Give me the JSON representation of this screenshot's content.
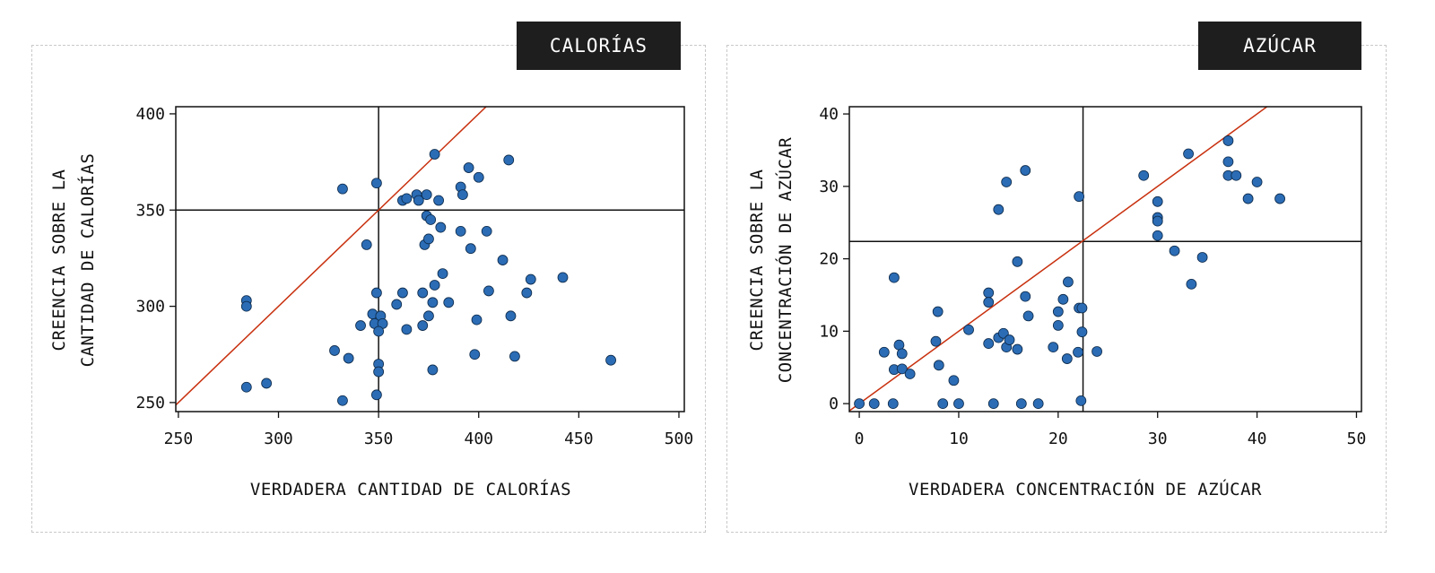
{
  "colors": {
    "point_fill": "#2b6cb5",
    "point_stroke": "#0d2a4a",
    "diagonal": "#c8300e",
    "reference": "#111111",
    "title_bg": "#1e1e1e"
  },
  "chart_data": [
    {
      "type": "scatter",
      "title": "CALORÍAS",
      "xlabel": "VERDADERA CANTIDAD DE CALORÍAS",
      "ylabel": [
        "CREENCIA SOBRE LA",
        "CANTIDAD DE CALORÍAS"
      ],
      "xlim": [
        248.7,
        502.7
      ],
      "ylim": [
        245.3,
        403.7
      ],
      "xticks": [
        250,
        300,
        350,
        400,
        450,
        500
      ],
      "yticks": [
        250,
        300,
        350,
        400
      ],
      "grid": false,
      "reference_lines": {
        "horizontal": 350,
        "vertical": 350,
        "diagonal": "y=x"
      },
      "points": [
        [
          332,
          361
        ],
        [
          349,
          364
        ],
        [
          362,
          355
        ],
        [
          364,
          356
        ],
        [
          369,
          358
        ],
        [
          370,
          355
        ],
        [
          344,
          332
        ],
        [
          284,
          303
        ],
        [
          284,
          300
        ],
        [
          349,
          307
        ],
        [
          362,
          307
        ],
        [
          359,
          301
        ],
        [
          347,
          296
        ],
        [
          351,
          295
        ],
        [
          348,
          291
        ],
        [
          352,
          291
        ],
        [
          341,
          290
        ],
        [
          350,
          287
        ],
        [
          364,
          288
        ],
        [
          328,
          277
        ],
        [
          335,
          273
        ],
        [
          350,
          270
        ],
        [
          350,
          266
        ],
        [
          284,
          258
        ],
        [
          294,
          260
        ],
        [
          349,
          254
        ],
        [
          332,
          251
        ],
        [
          378,
          379
        ],
        [
          415,
          376
        ],
        [
          395,
          372
        ],
        [
          400,
          367
        ],
        [
          391,
          362
        ],
        [
          392,
          358
        ],
        [
          374,
          358
        ],
        [
          380,
          355
        ],
        [
          374,
          347
        ],
        [
          376,
          345
        ],
        [
          381,
          341
        ],
        [
          391,
          339
        ],
        [
          404,
          339
        ],
        [
          396,
          330
        ],
        [
          373,
          332
        ],
        [
          375,
          335
        ],
        [
          412,
          324
        ],
        [
          382,
          317
        ],
        [
          378,
          311
        ],
        [
          426,
          314
        ],
        [
          442,
          315
        ],
        [
          405,
          308
        ],
        [
          424,
          307
        ],
        [
          372,
          307
        ],
        [
          377,
          302
        ],
        [
          385,
          302
        ],
        [
          375,
          295
        ],
        [
          372,
          290
        ],
        [
          399,
          293
        ],
        [
          416,
          295
        ],
        [
          398,
          275
        ],
        [
          418,
          274
        ],
        [
          466,
          272
        ],
        [
          377,
          267
        ]
      ]
    },
    {
      "type": "scatter",
      "title": "AZÚCAR",
      "xlabel": "VERDADERA CONCENTRACIÓN DE AZÚCAR",
      "ylabel": [
        "CREENCIA SOBRE LA",
        "CONCENTRACIÓN DE AZÚCAR"
      ],
      "xlim": [
        -1.0,
        50.5
      ],
      "ylim": [
        -1.1,
        41
      ],
      "xticks": [
        0,
        10,
        20,
        30,
        40,
        50
      ],
      "yticks": [
        0,
        10,
        20,
        30,
        40
      ],
      "grid": false,
      "reference_lines": {
        "horizontal": 22.4,
        "vertical": 22.5,
        "diagonal": "y=x"
      },
      "points": [
        [
          0,
          0
        ],
        [
          1.5,
          0
        ],
        [
          3.4,
          0
        ],
        [
          3.5,
          17.4
        ],
        [
          2.5,
          7.1
        ],
        [
          4.0,
          8.1
        ],
        [
          4.3,
          6.9
        ],
        [
          3.5,
          4.7
        ],
        [
          4.3,
          4.8
        ],
        [
          5.1,
          4.1
        ],
        [
          7.9,
          12.7
        ],
        [
          7.7,
          8.6
        ],
        [
          8.0,
          5.3
        ],
        [
          8.4,
          0
        ],
        [
          9.5,
          3.2
        ],
        [
          10.0,
          0
        ],
        [
          11.0,
          10.2
        ],
        [
          13.0,
          15.3
        ],
        [
          13.0,
          14.0
        ],
        [
          13.0,
          8.3
        ],
        [
          14.0,
          26.8
        ],
        [
          14.0,
          9.1
        ],
        [
          14.5,
          9.7
        ],
        [
          14.8,
          30.6
        ],
        [
          14.8,
          7.8
        ],
        [
          15.1,
          8.8
        ],
        [
          15.9,
          7.5
        ],
        [
          15.9,
          19.6
        ],
        [
          16.7,
          32.2
        ],
        [
          16.7,
          14.8
        ],
        [
          17.0,
          12.1
        ],
        [
          13.5,
          0
        ],
        [
          16.3,
          0
        ],
        [
          18.0,
          0
        ],
        [
          19.5,
          7.8
        ],
        [
          20.0,
          10.8
        ],
        [
          20.0,
          12.7
        ],
        [
          20.5,
          14.4
        ],
        [
          21.0,
          16.8
        ],
        [
          20.9,
          6.2
        ],
        [
          22.1,
          28.6
        ],
        [
          22.0,
          7.1
        ],
        [
          22.1,
          13.2
        ],
        [
          22.4,
          13.2
        ],
        [
          22.4,
          9.9
        ],
        [
          22.3,
          0.4
        ],
        [
          23.9,
          7.2
        ],
        [
          28.6,
          31.5
        ],
        [
          33.1,
          34.5
        ],
        [
          37.1,
          36.3
        ],
        [
          37.1,
          33.4
        ],
        [
          37.1,
          31.5
        ],
        [
          37.9,
          31.5
        ],
        [
          40.0,
          30.6
        ],
        [
          39.1,
          28.3
        ],
        [
          42.3,
          28.3
        ],
        [
          30.0,
          27.9
        ],
        [
          30.0,
          25.7
        ],
        [
          30.0,
          25.2
        ],
        [
          30.0,
          23.2
        ],
        [
          31.7,
          21.1
        ],
        [
          34.5,
          20.2
        ],
        [
          33.4,
          16.5
        ]
      ]
    }
  ]
}
